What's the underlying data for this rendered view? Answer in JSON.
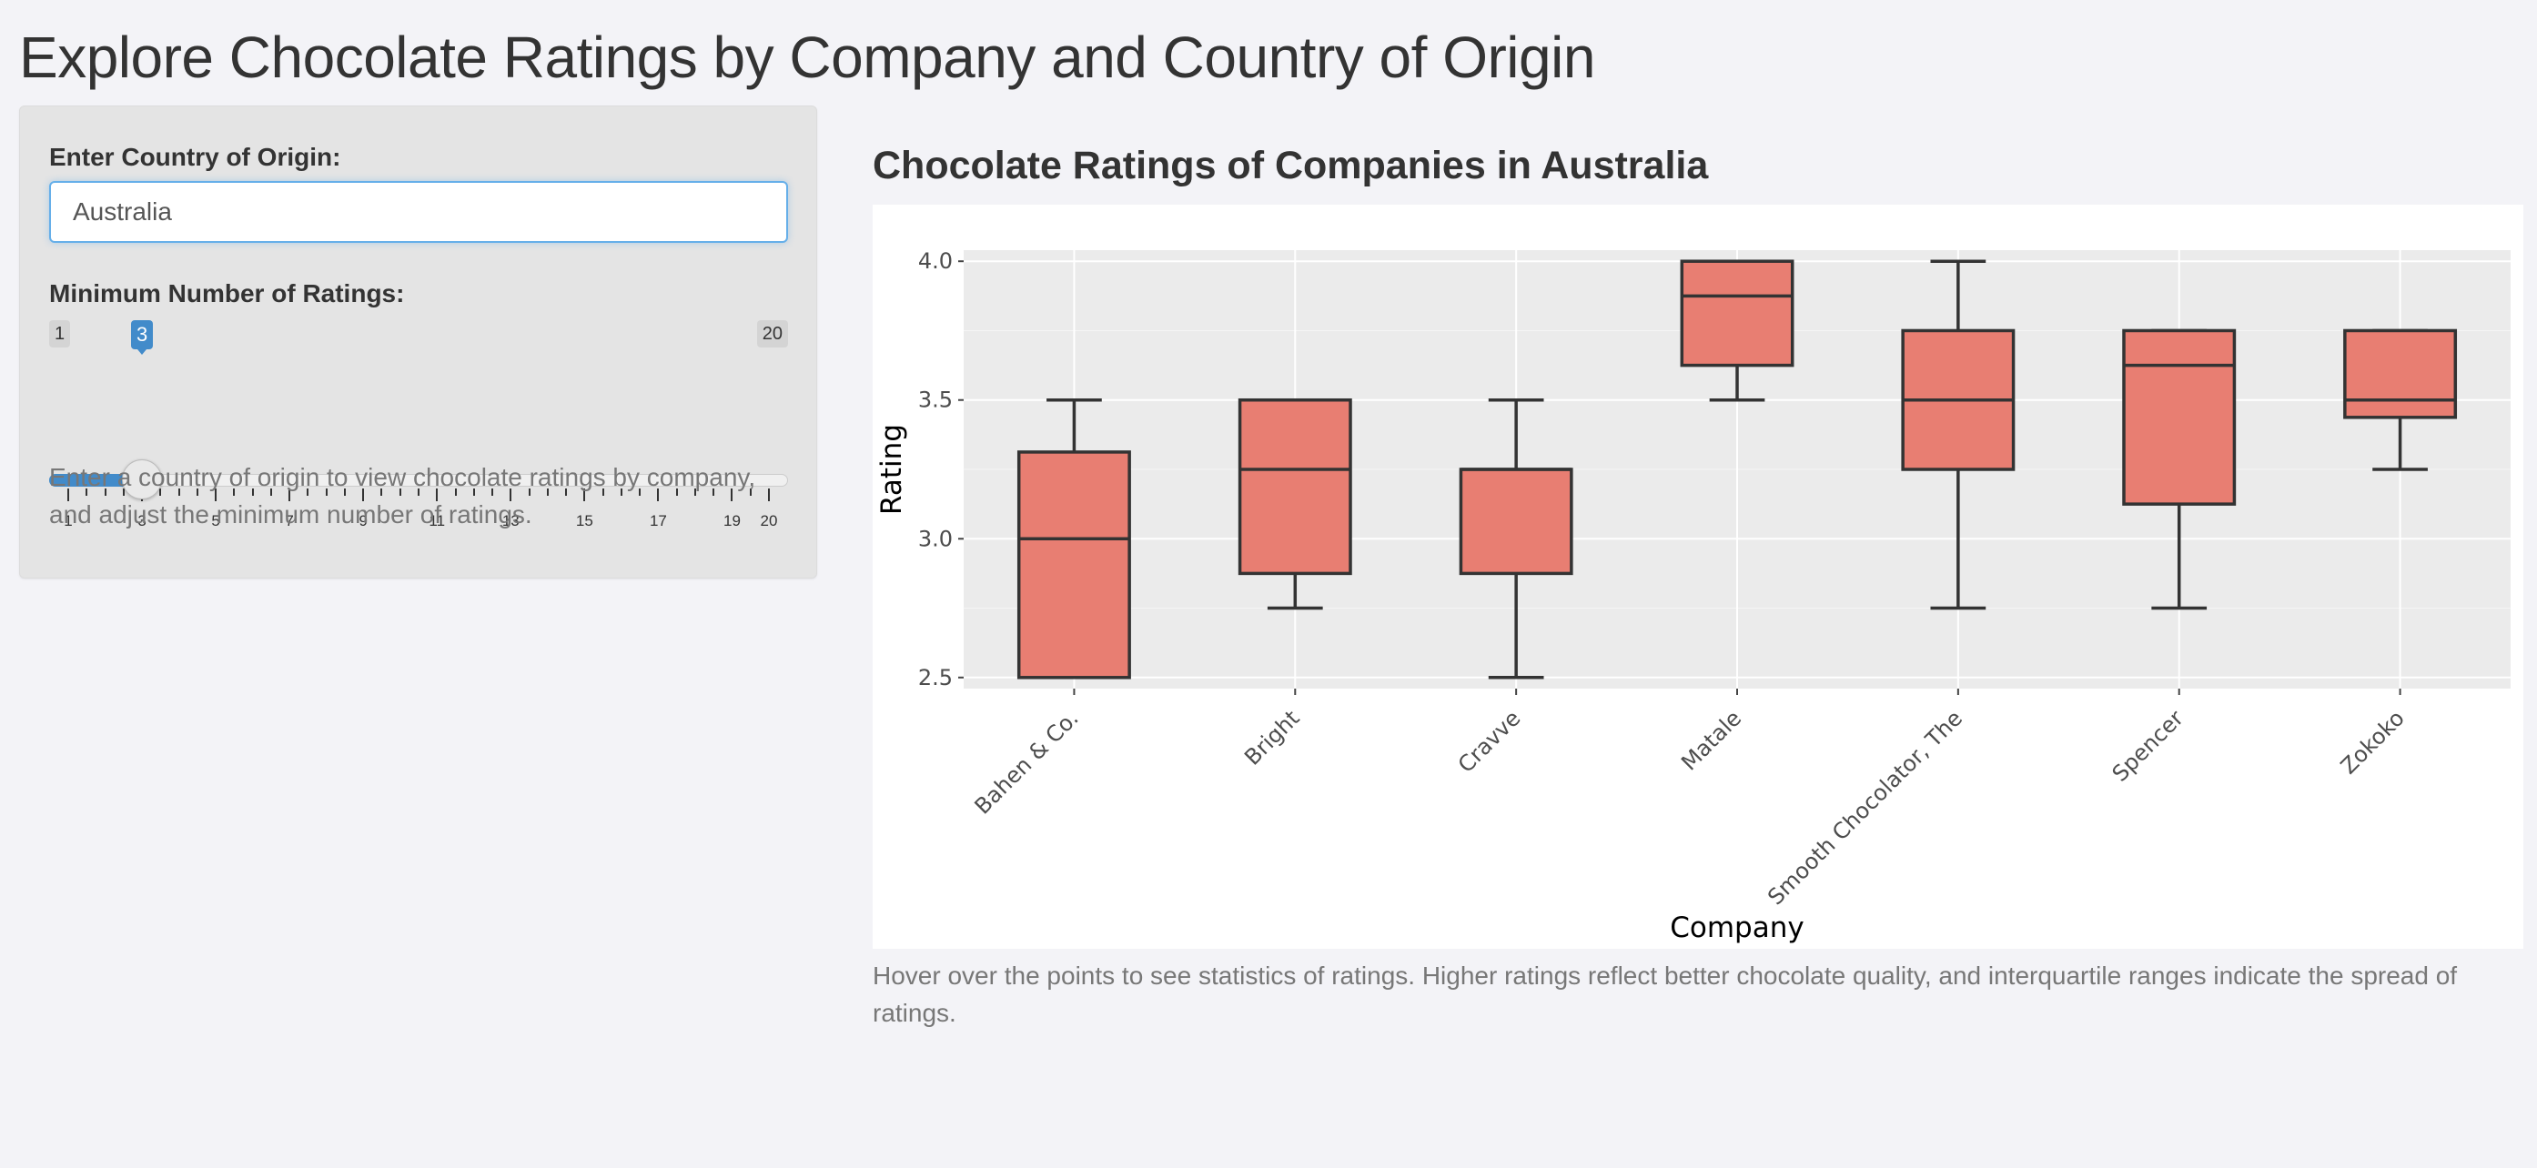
{
  "app": {
    "title": "Explore Chocolate Ratings by Company and Country of Origin"
  },
  "sidebar": {
    "country_label": "Enter Country of Origin:",
    "country_value": "Australia",
    "min_ratings_label": "Minimum Number of Ratings:",
    "slider": {
      "min": 1,
      "max": 20,
      "value": 3,
      "min_label": "1",
      "max_label": "20",
      "value_label": "3",
      "tick_labels": [
        "1",
        "3",
        "5",
        "7",
        "9",
        "11",
        "13",
        "15",
        "17",
        "19",
        "20"
      ]
    },
    "help_text": "Enter a country of origin to view chocolate ratings by company, and adjust the minimum number of ratings."
  },
  "main": {
    "plot_title": "Chocolate Ratings of Companies in Australia",
    "caption": "Hover over the points to see statistics of ratings. Higher ratings reflect better chocolate quality, and interquartile ranges indicate the spread of ratings."
  },
  "colors": {
    "box_fill": "#e87e72",
    "box_stroke": "#333333",
    "panel_bg": "#ebebeb",
    "accent": "#428bca"
  },
  "chart_data": {
    "type": "box",
    "xlabel": "Company",
    "ylabel": "Rating",
    "ylim": [
      2.46,
      4.04
    ],
    "yticks": [
      2.5,
      3.0,
      3.5,
      4.0
    ],
    "ytick_labels": [
      "2.5",
      "3.0",
      "3.5",
      "4.0"
    ],
    "grid": true,
    "categories": [
      "Bahen & Co.",
      "Bright",
      "Cravve",
      "Matale",
      "Smooth Chocolator, The",
      "Spencer",
      "Zokoko"
    ],
    "boxes": [
      {
        "category": "Bahen & Co.",
        "min": 2.5,
        "q1": 2.5,
        "median": 3.0,
        "q3": 3.3125,
        "max": 3.5
      },
      {
        "category": "Bright",
        "min": 2.75,
        "q1": 2.875,
        "median": 3.25,
        "q3": 3.5,
        "max": 3.5
      },
      {
        "category": "Cravve",
        "min": 2.5,
        "q1": 2.875,
        "median": 3.25,
        "q3": 3.25,
        "max": 3.5
      },
      {
        "category": "Matale",
        "min": 3.5,
        "q1": 3.625,
        "median": 3.875,
        "q3": 4.0,
        "max": 4.0
      },
      {
        "category": "Smooth Chocolator, The",
        "min": 2.75,
        "q1": 3.25,
        "median": 3.5,
        "q3": 3.75,
        "max": 4.0
      },
      {
        "category": "Spencer",
        "min": 2.75,
        "q1": 3.125,
        "median": 3.625,
        "q3": 3.75,
        "max": 3.75
      },
      {
        "category": "Zokoko",
        "min": 3.25,
        "q1": 3.4375,
        "median": 3.5,
        "q3": 3.75,
        "max": 3.75
      }
    ]
  }
}
